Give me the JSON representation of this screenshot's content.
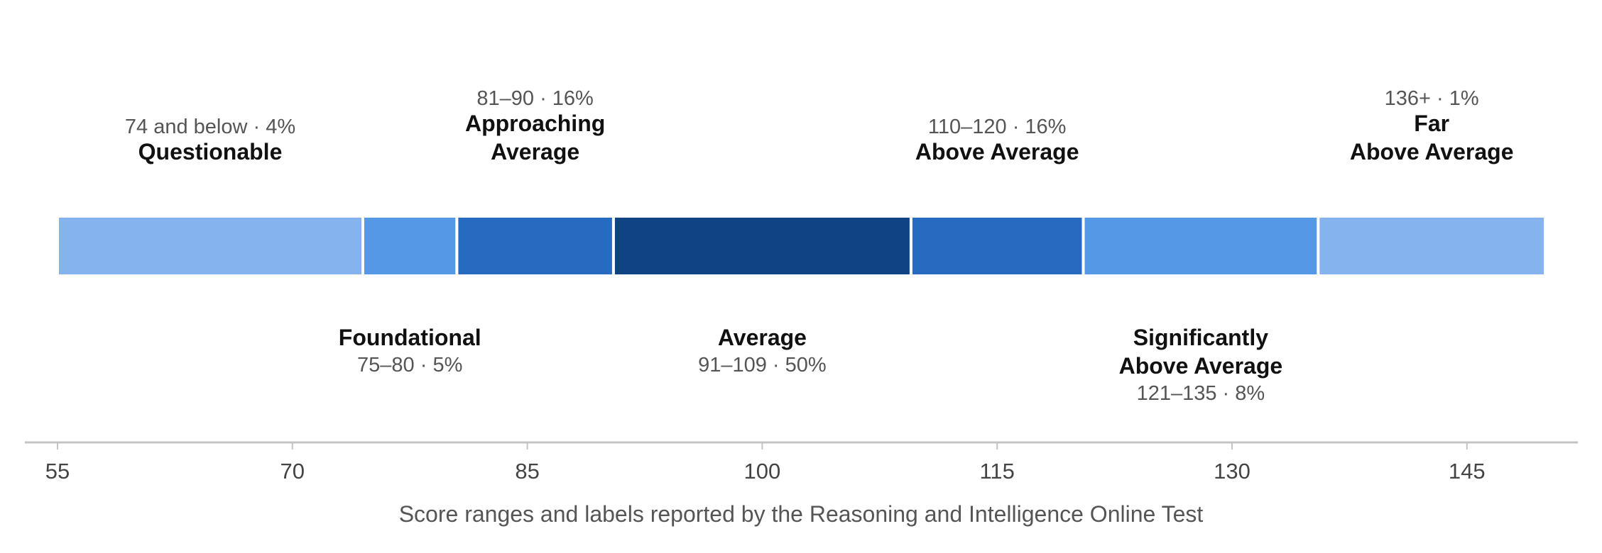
{
  "chart_data": {
    "type": "bar",
    "orientation": "horizontal-stacked-ranges",
    "caption": "Score ranges and labels reported by the Reasoning and Intelligence Online Test",
    "xlim": [
      55,
      150
    ],
    "ticks": [
      "55",
      "70",
      "85",
      "100",
      "115",
      "130",
      "145"
    ],
    "segments": [
      {
        "name": "Questionable",
        "range_text": "74 and below · 4%",
        "start": 55,
        "end": 74.5,
        "percent": 4,
        "color": "#85b3ee",
        "label_side": "above"
      },
      {
        "name": "Foundational",
        "range_text": "75–80 · 5%",
        "start": 74.5,
        "end": 80.5,
        "percent": 5,
        "color": "#5598e5",
        "label_side": "below"
      },
      {
        "name": "Approaching Average",
        "range_text": "81–90 · 16%",
        "start": 80.5,
        "end": 90.5,
        "percent": 16,
        "color": "#276bc1",
        "label_side": "above"
      },
      {
        "name": "Average",
        "range_text": "91–109 · 50%",
        "start": 90.5,
        "end": 109.5,
        "percent": 50,
        "color": "#104383",
        "label_side": "below"
      },
      {
        "name": "Above Average",
        "range_text": "110–120 · 16%",
        "start": 109.5,
        "end": 120.5,
        "percent": 16,
        "color": "#276bc1",
        "label_side": "above"
      },
      {
        "name": "Significantly Above Average",
        "range_text": "121–135 · 8%",
        "start": 120.5,
        "end": 135.5,
        "percent": 8,
        "color": "#5598e5",
        "label_side": "below"
      },
      {
        "name": "Far Above Average",
        "range_text": "136+ · 1%",
        "start": 135.5,
        "end": 150,
        "percent": 1,
        "color": "#85b3ee",
        "label_side": "above"
      }
    ]
  }
}
